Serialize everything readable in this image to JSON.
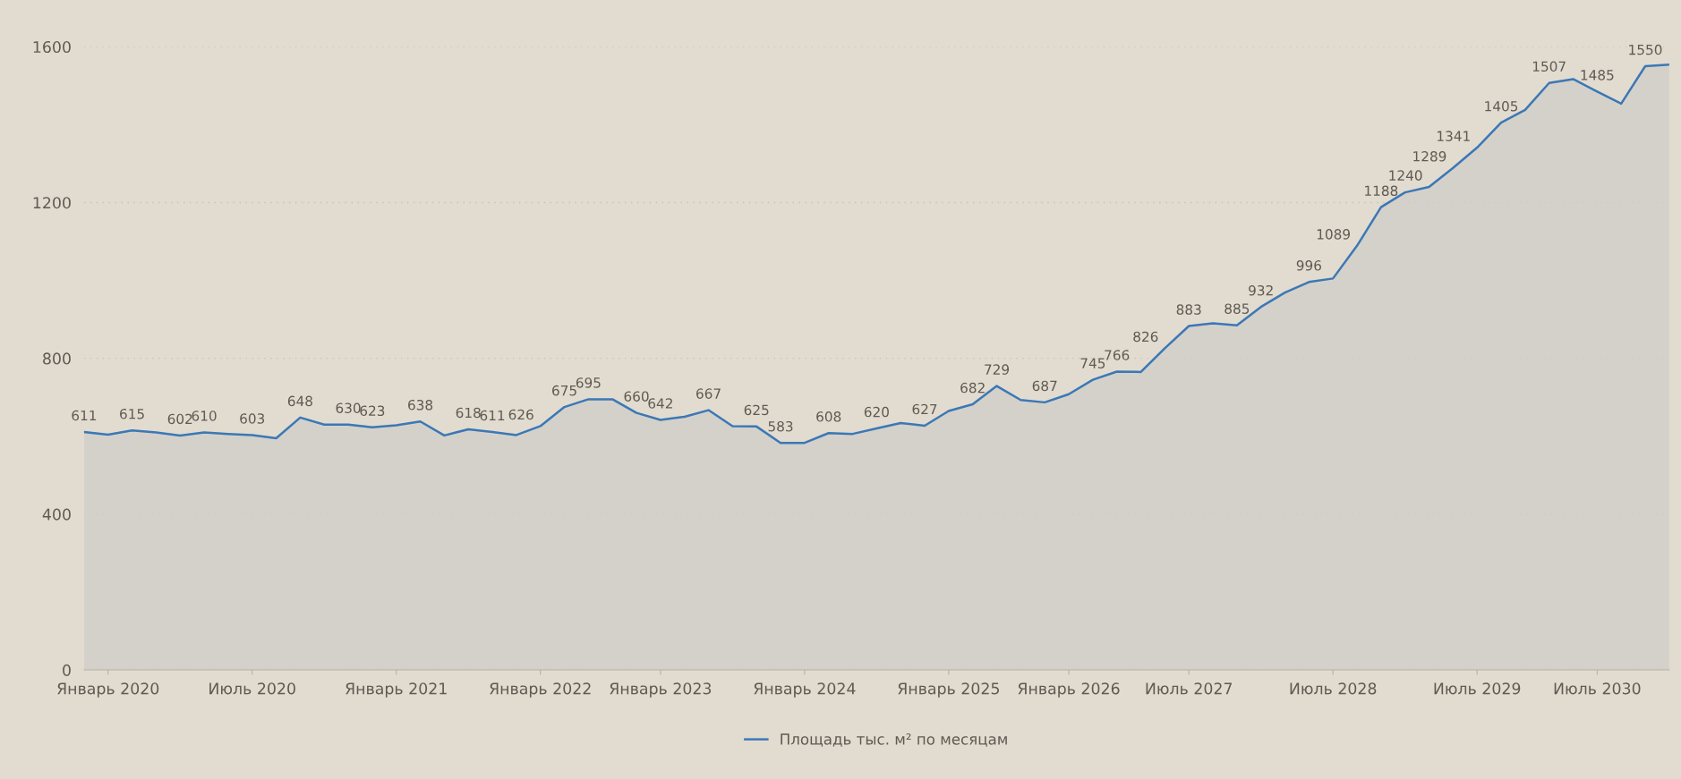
{
  "chart_data": {
    "type": "area",
    "categories": [
      null,
      "Январь 2020",
      null,
      null,
      null,
      null,
      null,
      "Июль 2020",
      null,
      null,
      null,
      null,
      null,
      "Январь 2021",
      null,
      null,
      null,
      null,
      null,
      "Январь 2022",
      null,
      null,
      null,
      null,
      "Январь 2023",
      null,
      null,
      null,
      null,
      null,
      "Январь 2024",
      null,
      null,
      null,
      null,
      null,
      "Январь 2025",
      null,
      null,
      null,
      null,
      "Январь 2026",
      null,
      null,
      null,
      null,
      "Июль 2027",
      null,
      null,
      null,
      null,
      null,
      "Июль 2028",
      null,
      null,
      null,
      null,
      null,
      "Июль 2029",
      null,
      null,
      null,
      null,
      "Июль 2030",
      null,
      null,
      null
    ],
    "series": [
      {
        "name": "Площадь тыс. м² по месяцам",
        "color": "#3b78b5",
        "values": [
          611,
          604,
          615,
          610,
          602,
          610,
          606,
          603,
          595,
          648,
          630,
          630,
          623,
          628,
          638,
          602,
          618,
          611,
          603,
          626,
          675,
          695,
          695,
          660,
          642,
          650,
          667,
          626,
          625,
          583,
          583,
          608,
          606,
          620,
          634,
          627,
          665,
          682,
          729,
          693,
          687,
          708,
          745,
          766,
          765,
          826,
          883,
          890,
          885,
          932,
          969,
          996,
          1005,
          1089,
          1188,
          1226,
          1240,
          1289,
          1341,
          1405,
          1438,
          1507,
          1517,
          1485,
          1454,
          1550,
          1554
        ],
        "value_labels": [
          "611",
          null,
          "615",
          null,
          "602",
          "610",
          null,
          "603",
          null,
          "648",
          null,
          "630",
          "623",
          null,
          "638",
          null,
          "618",
          "611",
          null,
          "626",
          "675",
          "695",
          null,
          "660",
          "642",
          null,
          "667",
          null,
          "625",
          "583",
          null,
          "608",
          null,
          "620",
          null,
          "627",
          null,
          "682",
          "729",
          null,
          "687",
          null,
          "745",
          "766",
          null,
          "826",
          "883",
          null,
          "885",
          "932",
          null,
          "996",
          null,
          "1089",
          "1188",
          null,
          "1240",
          "1289",
          "1341",
          "1405",
          null,
          "1507",
          null,
          "1485",
          null,
          "1550",
          null
        ]
      }
    ],
    "ylim": [
      0,
      1600
    ],
    "yticks": [
      0,
      400,
      800,
      1200,
      1600
    ],
    "grid": "y",
    "legend": "bottom",
    "marker": "none",
    "line_style": "solid"
  }
}
